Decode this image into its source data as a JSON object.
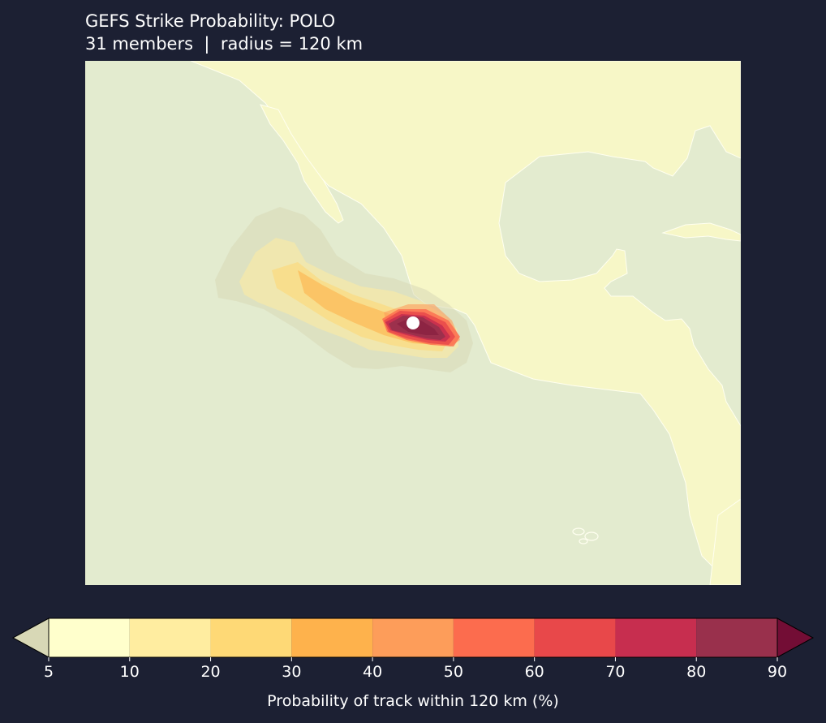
{
  "title": {
    "line1": "GEFS Strike Probability: POLO",
    "line2": "31 members  |  radius = 120 km"
  },
  "map": {
    "ocean_color": "#e3ebcf",
    "land_color": "#f7f7c7",
    "coastline_color": "#fffff0",
    "storm_marker_color": "#ffffff"
  },
  "colorbar": {
    "label": "Probability of track within 120 km (%)",
    "levels": [
      5,
      10,
      20,
      30,
      40,
      50,
      60,
      70,
      80,
      90
    ],
    "colors": [
      "#ffffcc",
      "#ffeda0",
      "#fed976",
      "#feb24c",
      "#fd9d5a",
      "#fc6c4e",
      "#e8484a",
      "#c72e4f",
      "#99304c"
    ],
    "under_color": "#d8d8b6",
    "over_color": "#730d35",
    "extend": "both"
  }
}
